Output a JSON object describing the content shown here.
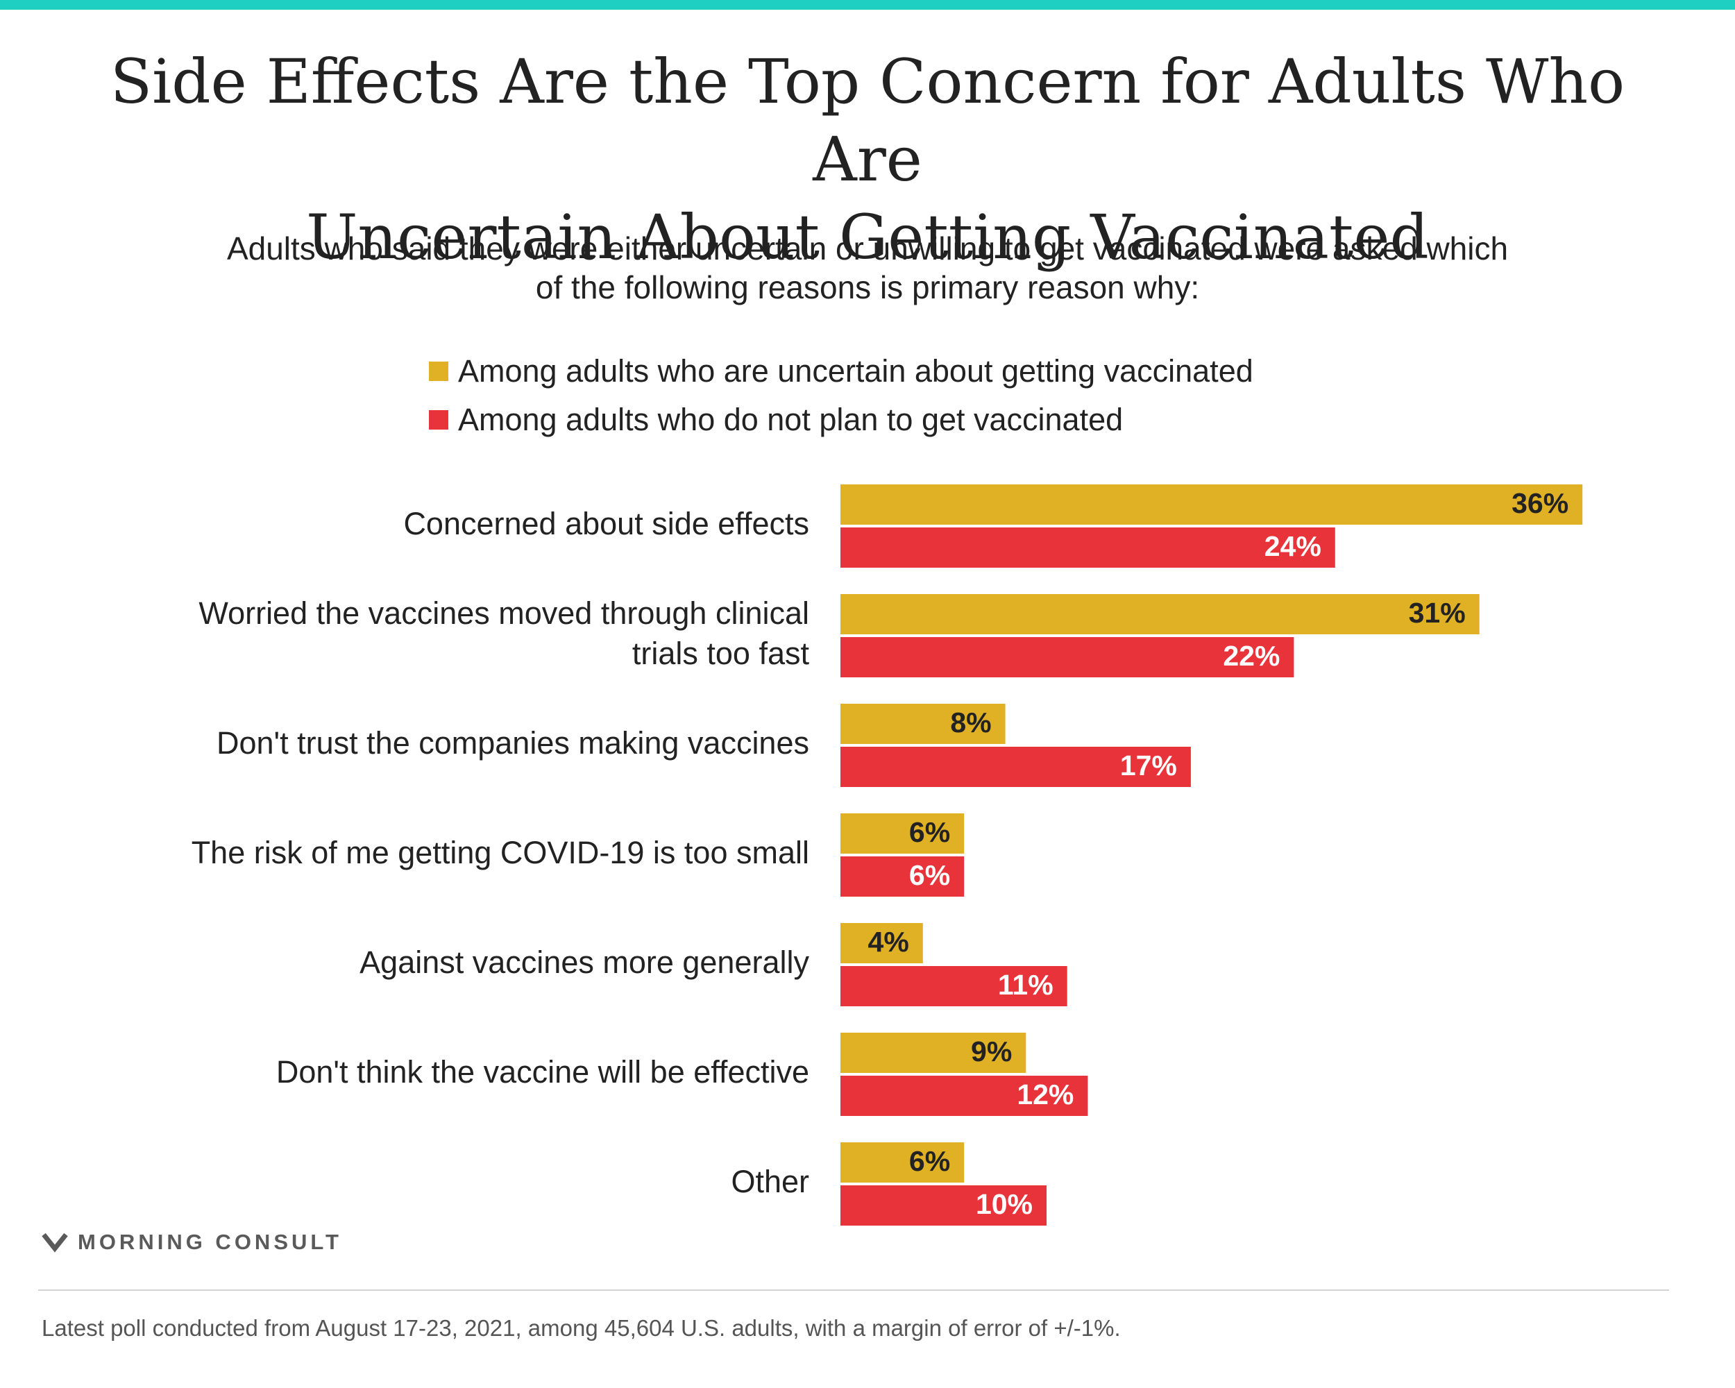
{
  "colors": {
    "top_bar": "#1fcfc1",
    "uncertain": "#e0b025",
    "not_plan": "#e8333a",
    "text": "#222222"
  },
  "header": {
    "title_line1": "Side Effects Are the Top Concern for Adults Who Are",
    "title_line2": "Uncertain About Getting Vaccinated",
    "subtitle_line1": "Adults who said they were either uncertain or unwilling to get vaccinated were asked which",
    "subtitle_line2": "of the following reasons is primary reason why:"
  },
  "chart_data": {
    "type": "bar",
    "orientation": "horizontal",
    "title": "Side Effects Are the Top Concern for Adults Who Are Uncertain About Getting Vaccinated",
    "categories": [
      [
        "Concerned about side effects"
      ],
      [
        "Worried the vaccines moved through clinical",
        "trials too fast"
      ],
      [
        "Don't trust the companies making vaccines"
      ],
      [
        "The risk of me getting COVID-19 is too small"
      ],
      [
        "Against vaccines more generally"
      ],
      [
        "Don't think the vaccine will be effective"
      ],
      [
        "Other"
      ]
    ],
    "series": [
      {
        "name": "Among adults who are uncertain about getting vaccinated",
        "color": "#e0b025",
        "label_color": "#222222",
        "values": [
          36,
          31,
          8,
          6,
          4,
          9,
          6
        ],
        "labels": [
          "36%",
          "31%",
          "8%",
          "6%",
          "4%",
          "9%",
          "6%"
        ]
      },
      {
        "name": "Among adults who do not plan to get vaccinated",
        "color": "#e8333a",
        "label_color": "#ffffff",
        "values": [
          24,
          22,
          17,
          6,
          11,
          12,
          10
        ],
        "labels": [
          "24%",
          "22%",
          "17%",
          "6%",
          "11%",
          "12%",
          "10%"
        ]
      }
    ],
    "value_unit": "%",
    "legend_position": "top",
    "grid": false
  },
  "branding": {
    "logo_text": "MORNING CONSULT"
  },
  "footer": {
    "note": "Latest poll conducted from August 17-23, 2021, among 45,604 U.S. adults, with a margin of error of +/-1%."
  }
}
